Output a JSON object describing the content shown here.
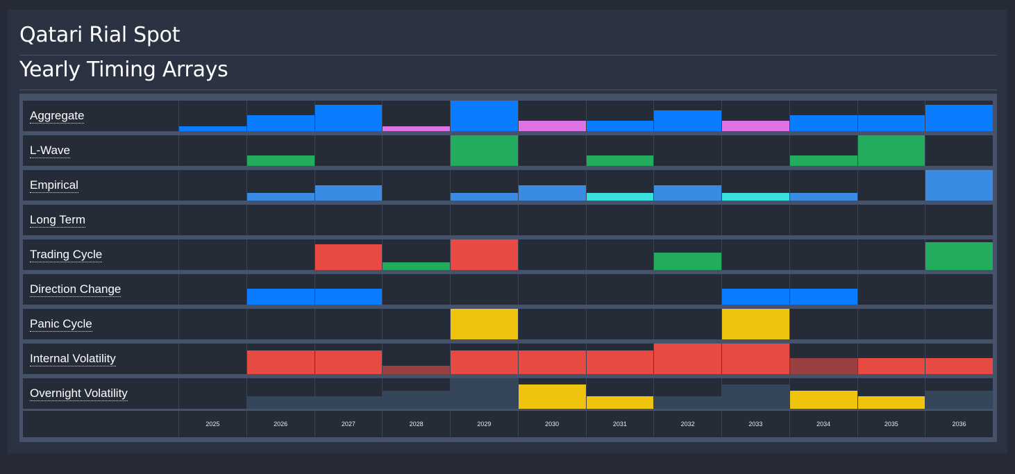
{
  "header": {
    "title": "Qatari Rial Spot",
    "subtitle": "Yearly Timing Arrays"
  },
  "chart_data": {
    "type": "heatmap",
    "years": [
      "2025",
      "2026",
      "2027",
      "2028",
      "2029",
      "2030",
      "2031",
      "2032",
      "2033",
      "2034",
      "2035",
      "2036"
    ],
    "value_scale": [
      0,
      1
    ],
    "colors": {
      "blue": "#0a7cff",
      "pink": "#de73e6",
      "green": "#23ab5e",
      "lightblue": "#398be4",
      "cyan": "#38e0e0",
      "red": "#e74a42",
      "darkred": "#9a4040",
      "yellow": "#f0c30f",
      "slate": "#33465a"
    },
    "rows": [
      {
        "label": "Aggregate",
        "cells": [
          {
            "v": 0.17,
            "c": "blue"
          },
          {
            "v": 0.52,
            "c": "blue"
          },
          {
            "v": 0.86,
            "c": "blue"
          },
          {
            "v": 0.17,
            "c": "pink"
          },
          {
            "v": 1.0,
            "c": "blue"
          },
          {
            "v": 0.33,
            "c": "pink"
          },
          {
            "v": 0.33,
            "c": "blue"
          },
          {
            "v": 0.68,
            "c": "blue"
          },
          {
            "v": 0.33,
            "c": "pink"
          },
          {
            "v": 0.52,
            "c": "blue"
          },
          {
            "v": 0.52,
            "c": "blue"
          },
          {
            "v": 0.86,
            "c": "blue"
          }
        ]
      },
      {
        "label": "L-Wave",
        "cells": [
          {
            "v": 0,
            "c": "green"
          },
          {
            "v": 0.33,
            "c": "green"
          },
          {
            "v": 0,
            "c": "green"
          },
          {
            "v": 0,
            "c": "green"
          },
          {
            "v": 1.0,
            "c": "green"
          },
          {
            "v": 0,
            "c": "green"
          },
          {
            "v": 0.33,
            "c": "green"
          },
          {
            "v": 0,
            "c": "green"
          },
          {
            "v": 0,
            "c": "green"
          },
          {
            "v": 0.33,
            "c": "green"
          },
          {
            "v": 1.0,
            "c": "green"
          },
          {
            "v": 0,
            "c": "green"
          }
        ]
      },
      {
        "label": "Empirical",
        "cells": [
          {
            "v": 0,
            "c": "lightblue"
          },
          {
            "v": 0.24,
            "c": "lightblue"
          },
          {
            "v": 0.5,
            "c": "lightblue"
          },
          {
            "v": 0,
            "c": "lightblue"
          },
          {
            "v": 0.24,
            "c": "lightblue"
          },
          {
            "v": 0.5,
            "c": "lightblue"
          },
          {
            "v": 0.24,
            "c": "cyan"
          },
          {
            "v": 0.5,
            "c": "lightblue"
          },
          {
            "v": 0.24,
            "c": "cyan"
          },
          {
            "v": 0.24,
            "c": "lightblue"
          },
          {
            "v": 0,
            "c": "lightblue"
          },
          {
            "v": 1.0,
            "c": "lightblue"
          }
        ]
      },
      {
        "label": "Long Term",
        "cells": [
          {
            "v": 0,
            "c": "blue"
          },
          {
            "v": 0,
            "c": "blue"
          },
          {
            "v": 0,
            "c": "blue"
          },
          {
            "v": 0,
            "c": "blue"
          },
          {
            "v": 0,
            "c": "blue"
          },
          {
            "v": 0,
            "c": "blue"
          },
          {
            "v": 0,
            "c": "blue"
          },
          {
            "v": 0,
            "c": "blue"
          },
          {
            "v": 0,
            "c": "blue"
          },
          {
            "v": 0,
            "c": "blue"
          },
          {
            "v": 0,
            "c": "blue"
          },
          {
            "v": 0,
            "c": "blue"
          }
        ]
      },
      {
        "label": "Trading Cycle",
        "cells": [
          {
            "v": 0,
            "c": "red"
          },
          {
            "v": 0,
            "c": "red"
          },
          {
            "v": 0.84,
            "c": "red"
          },
          {
            "v": 0.24,
            "c": "green"
          },
          {
            "v": 1.0,
            "c": "red"
          },
          {
            "v": 0,
            "c": "red"
          },
          {
            "v": 0,
            "c": "red"
          },
          {
            "v": 0.57,
            "c": "green"
          },
          {
            "v": 0,
            "c": "red"
          },
          {
            "v": 0,
            "c": "red"
          },
          {
            "v": 0,
            "c": "red"
          },
          {
            "v": 0.92,
            "c": "green"
          }
        ]
      },
      {
        "label": "Direction Change",
        "cells": [
          {
            "v": 0,
            "c": "blue"
          },
          {
            "v": 0.52,
            "c": "blue"
          },
          {
            "v": 0.52,
            "c": "blue"
          },
          {
            "v": 0,
            "c": "blue"
          },
          {
            "v": 0,
            "c": "blue"
          },
          {
            "v": 0,
            "c": "blue"
          },
          {
            "v": 0,
            "c": "blue"
          },
          {
            "v": 0,
            "c": "blue"
          },
          {
            "v": 0.52,
            "c": "blue"
          },
          {
            "v": 0.52,
            "c": "blue"
          },
          {
            "v": 0,
            "c": "blue"
          },
          {
            "v": 0,
            "c": "blue"
          }
        ]
      },
      {
        "label": "Panic Cycle",
        "cells": [
          {
            "v": 0,
            "c": "yellow"
          },
          {
            "v": 0,
            "c": "yellow"
          },
          {
            "v": 0,
            "c": "yellow"
          },
          {
            "v": 0,
            "c": "yellow"
          },
          {
            "v": 1.0,
            "c": "yellow"
          },
          {
            "v": 0,
            "c": "yellow"
          },
          {
            "v": 0,
            "c": "yellow"
          },
          {
            "v": 0,
            "c": "yellow"
          },
          {
            "v": 1.0,
            "c": "yellow"
          },
          {
            "v": 0,
            "c": "yellow"
          },
          {
            "v": 0,
            "c": "yellow"
          },
          {
            "v": 0,
            "c": "yellow"
          }
        ]
      },
      {
        "label": "Internal Volatility",
        "cells": [
          {
            "v": 0,
            "c": "red"
          },
          {
            "v": 0.77,
            "c": "red"
          },
          {
            "v": 0.77,
            "c": "red"
          },
          {
            "v": 0.27,
            "c": "darkred"
          },
          {
            "v": 0.77,
            "c": "red"
          },
          {
            "v": 0.77,
            "c": "red"
          },
          {
            "v": 0.77,
            "c": "red"
          },
          {
            "v": 1.0,
            "c": "red"
          },
          {
            "v": 1.0,
            "c": "red"
          },
          {
            "v": 0.52,
            "c": "darkred"
          },
          {
            "v": 0.52,
            "c": "red"
          },
          {
            "v": 0.52,
            "c": "red"
          }
        ]
      },
      {
        "label": "Overnight Volatility",
        "cells": [
          {
            "v": 0,
            "c": "slate"
          },
          {
            "v": 0.41,
            "c": "slate"
          },
          {
            "v": 0.41,
            "c": "slate"
          },
          {
            "v": 0.59,
            "c": "slate"
          },
          {
            "v": 1.0,
            "c": "slate"
          },
          {
            "v": 0.8,
            "c": "yellow"
          },
          {
            "v": 0.41,
            "c": "yellow"
          },
          {
            "v": 0.41,
            "c": "slate"
          },
          {
            "v": 0.8,
            "c": "slate"
          },
          {
            "v": 0.59,
            "c": "yellow"
          },
          {
            "v": 0.41,
            "c": "yellow"
          },
          {
            "v": 0.59,
            "c": "slate"
          }
        ]
      }
    ]
  }
}
